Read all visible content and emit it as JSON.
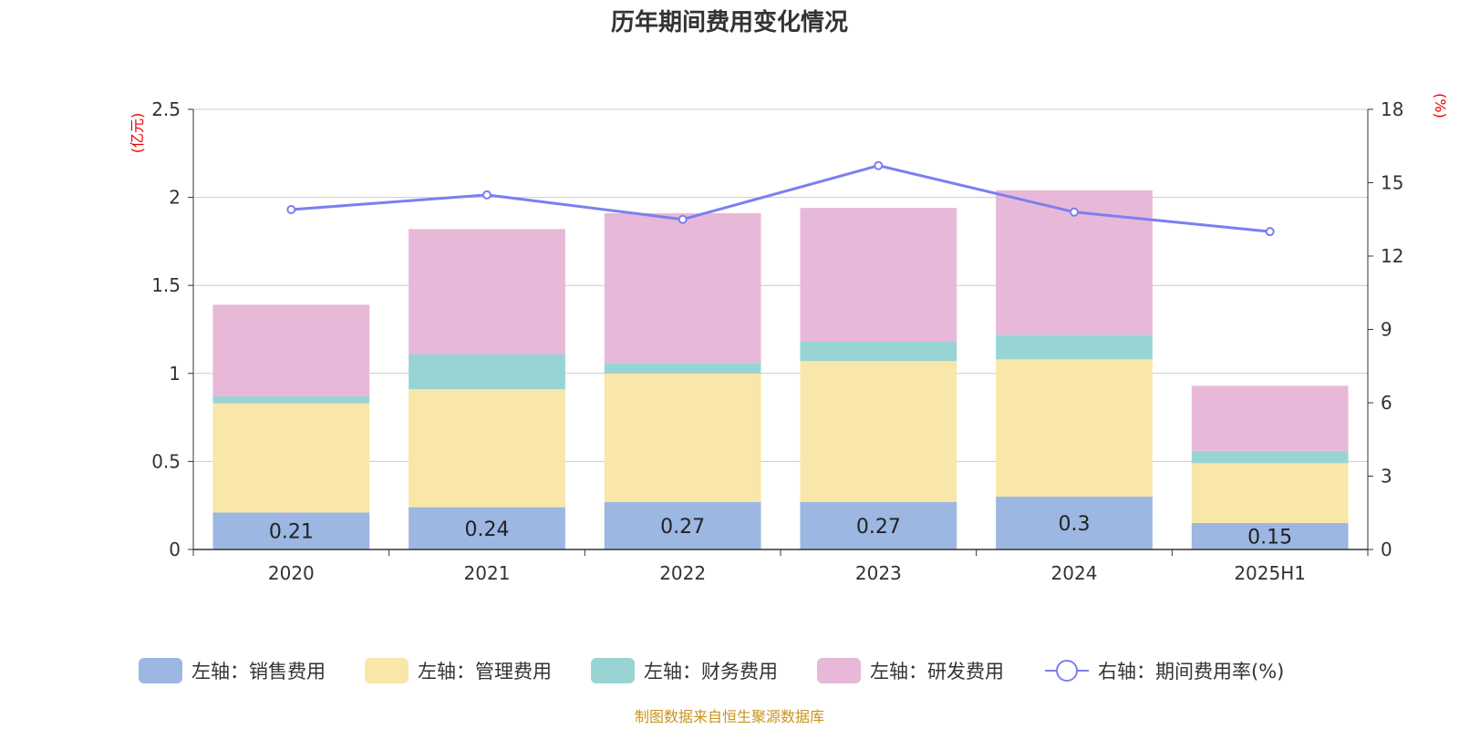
{
  "chart_data": {
    "type": "bar",
    "title": "历年期间费用变化情况",
    "categories": [
      "2020",
      "2021",
      "2022",
      "2023",
      "2024",
      "2025H1"
    ],
    "left_axis": {
      "unit": "(亿元)",
      "ylim": [
        0,
        2.5
      ],
      "ticks": [
        "0",
        "0.5",
        "1",
        "1.5",
        "2",
        "2.5"
      ]
    },
    "right_axis": {
      "unit": "(%)",
      "ylim": [
        0,
        18
      ],
      "ticks": [
        "0",
        "3",
        "6",
        "9",
        "12",
        "15",
        "18"
      ]
    },
    "series": [
      {
        "name": "左轴：销售费用",
        "kind": "bar",
        "color": "#9bb7e2",
        "values": [
          0.21,
          0.24,
          0.27,
          0.27,
          0.3,
          0.15
        ],
        "labels": [
          "0.21",
          "0.24",
          "0.27",
          "0.27",
          "0.3",
          "0.15"
        ]
      },
      {
        "name": "左轴：管理费用",
        "kind": "bar",
        "color": "#f8e7a8",
        "values": [
          0.62,
          0.67,
          0.73,
          0.8,
          0.78,
          0.34
        ]
      },
      {
        "name": "左轴：财务费用",
        "kind": "bar",
        "color": "#99d4d4",
        "values": [
          0.04,
          0.2,
          0.06,
          0.11,
          0.14,
          0.07
        ]
      },
      {
        "name": "左轴：研发费用",
        "kind": "bar",
        "color": "#e8b8d8",
        "values": [
          0.52,
          0.71,
          0.85,
          0.76,
          0.82,
          0.37
        ]
      },
      {
        "name": "右轴：期间费用率(%)",
        "kind": "line",
        "color": "#7b7ff0",
        "values": [
          13.9,
          14.5,
          13.5,
          15.7,
          13.8,
          13.0
        ]
      }
    ],
    "grid": true,
    "legend_position": "bottom"
  },
  "source_note": "制图数据来自恒生聚源数据库"
}
